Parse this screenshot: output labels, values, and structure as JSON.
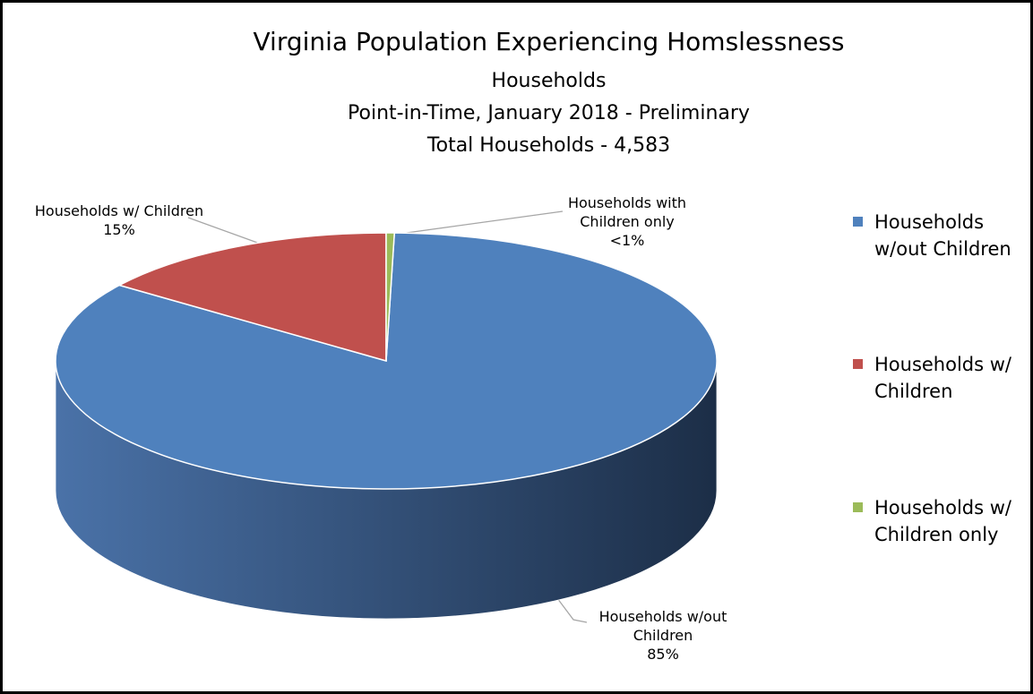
{
  "chart_data": {
    "type": "pie3d",
    "title": "Virginia Population Experiencing Homslessness",
    "subtitles": [
      "Households",
      "Point-in-Time, January 2018 - Preliminary",
      "Total Households - 4,583"
    ],
    "categories": [
      "Households w/out Children",
      "Households w/ Children",
      "Households w/ Children only"
    ],
    "data_label_names": [
      "Households w/out Children",
      "Households w/ Children",
      "Households with Children only"
    ],
    "values": [
      85,
      15,
      0.4
    ],
    "value_labels": [
      "85%",
      "15%",
      "<1%"
    ],
    "colors": [
      "#4f81bd",
      "#c0504d",
      "#9bbb59"
    ],
    "side_colors": [
      [
        "#4a72a8",
        "#1c2e47"
      ],
      [
        "#a84440",
        "#6b2a28"
      ],
      [
        "#86a34c",
        "#5a6e33"
      ]
    ],
    "legend": "right"
  }
}
